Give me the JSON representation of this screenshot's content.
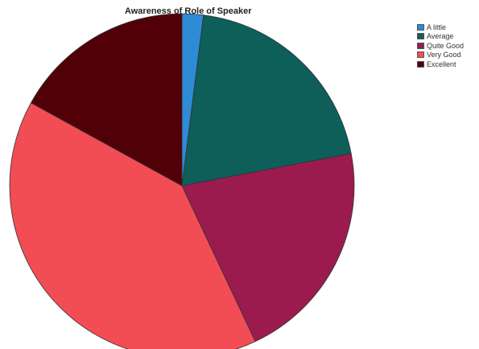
{
  "chart_data": {
    "type": "pie",
    "title": "Awareness of Role of Speaker",
    "slices": [
      {
        "label": "A little",
        "value": 2,
        "color": "#2e8bd6"
      },
      {
        "label": "Average",
        "value": 20,
        "color": "#0e5e5a"
      },
      {
        "label": "Quite Good",
        "value": 21,
        "color": "#9b1b4f"
      },
      {
        "label": "Very Good",
        "value": 40,
        "color": "#f24d55"
      },
      {
        "label": "Excellent",
        "value": 17,
        "color": "#520008"
      }
    ],
    "legend_position": "top-right"
  }
}
